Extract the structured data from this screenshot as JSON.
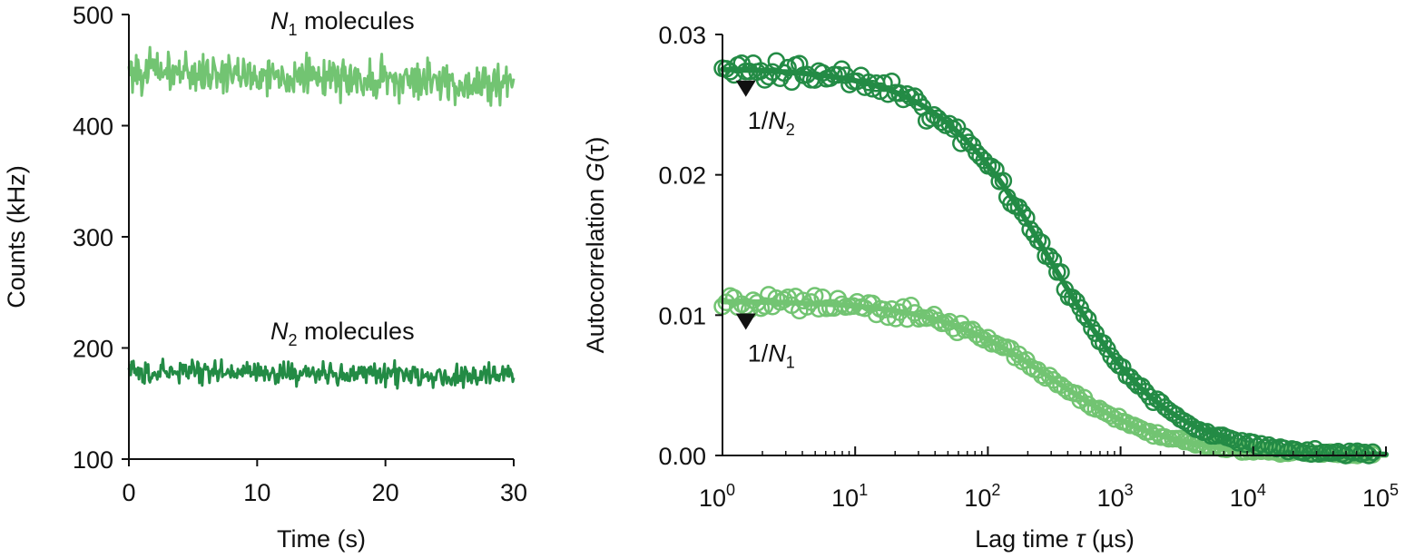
{
  "colors": {
    "light_green": "#72c472",
    "dark_green": "#238b45",
    "axis": "#111111"
  },
  "chart_data": [
    {
      "type": "line",
      "xlabel": "Time (s)",
      "ylabel": "Counts (kHz)",
      "xlim": [
        0,
        30
      ],
      "ylim": [
        100,
        500
      ],
      "x_ticks": [
        "0",
        "10",
        "20",
        "30"
      ],
      "y_ticks": [
        "100",
        "200",
        "300",
        "400",
        "500"
      ],
      "series": [
        {
          "name_main": "N",
          "name_sub": "1",
          "name_rest": " molecules",
          "mean_start": 450,
          "mean_end": 437,
          "noise": 11,
          "color": "#72c472"
        },
        {
          "name_main": "N",
          "name_sub": "2",
          "name_rest": " molecules",
          "mean_start": 179,
          "mean_end": 175,
          "noise": 6,
          "color": "#238b45"
        }
      ]
    },
    {
      "type": "scatter",
      "x_scale": "log",
      "xlabel_main": "Lag time ",
      "xlabel_tau": "τ",
      "xlabel_unit": " (µs)",
      "ylabel_main": "Autocorrelation ",
      "ylabel_g": "G",
      "ylabel_tau": "(τ)",
      "xlim": [
        1,
        100000
      ],
      "ylim": [
        0,
        0.03
      ],
      "x_ticks": [
        {
          "value": 1,
          "base": "10",
          "exp": "0"
        },
        {
          "value": 10,
          "base": "10",
          "exp": "1"
        },
        {
          "value": 100,
          "base": "10",
          "exp": "2"
        },
        {
          "value": 1000,
          "base": "10",
          "exp": "3"
        },
        {
          "value": 10000,
          "base": "10",
          "exp": "4"
        },
        {
          "value": 100000,
          "base": "10",
          "exp": "5"
        }
      ],
      "y_ticks": [
        "0.00",
        "0.01",
        "0.02",
        "0.03"
      ],
      "series": [
        {
          "amplitude": 0.0276,
          "tau_d": 300,
          "noise": 0.0007,
          "color": "#238b45"
        },
        {
          "amplitude": 0.011,
          "tau_d": 300,
          "noise": 0.0005,
          "color": "#72c472"
        }
      ],
      "annotations": [
        {
          "label_main": "1/N",
          "label_sub": "2",
          "marker": "triangle",
          "x": 1.5,
          "y": 0.0262
        },
        {
          "label_main": "1/N",
          "label_sub": "1",
          "marker": "triangle",
          "x": 1.5,
          "y": 0.0096
        }
      ]
    }
  ]
}
